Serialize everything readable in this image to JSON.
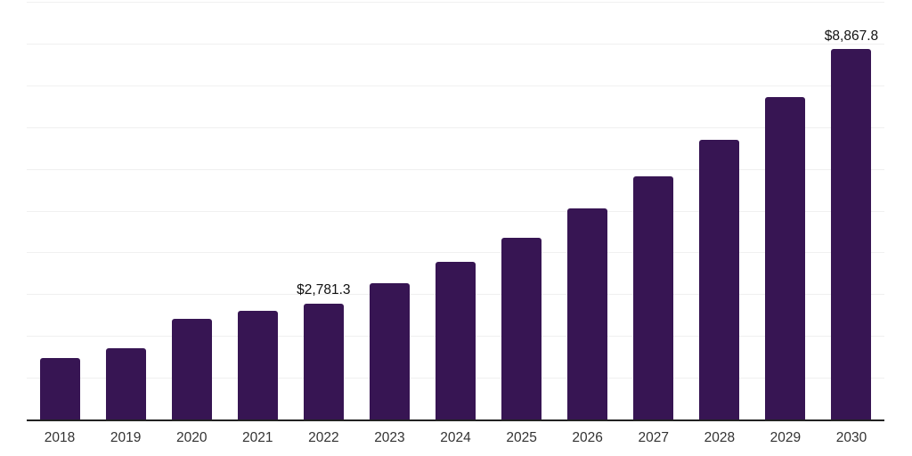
{
  "chart_data": {
    "type": "bar",
    "title": "",
    "xlabel": "",
    "ylabel": "",
    "categories": [
      "2018",
      "2019",
      "2020",
      "2021",
      "2022",
      "2023",
      "2024",
      "2025",
      "2026",
      "2027",
      "2028",
      "2029",
      "2030"
    ],
    "values": [
      1470,
      1705,
      2410,
      2610,
      2781.3,
      3260,
      3775,
      4350,
      5050,
      5820,
      6695,
      7715,
      8867.8
    ],
    "point_labels": [
      {
        "index": 4,
        "text": "$2,781.3"
      },
      {
        "index": 12,
        "text": "$8,867.8"
      }
    ],
    "ylim": [
      0,
      10000
    ],
    "gridline_step": 1000,
    "grid": true,
    "legend": false,
    "y_tick_labels_visible": false,
    "colors": {
      "bar": "#371553",
      "axis": "#222222",
      "gridline": "#f0f0f0",
      "value_label": "#111111",
      "tick_label": "#333333",
      "background": "#ffffff"
    }
  }
}
